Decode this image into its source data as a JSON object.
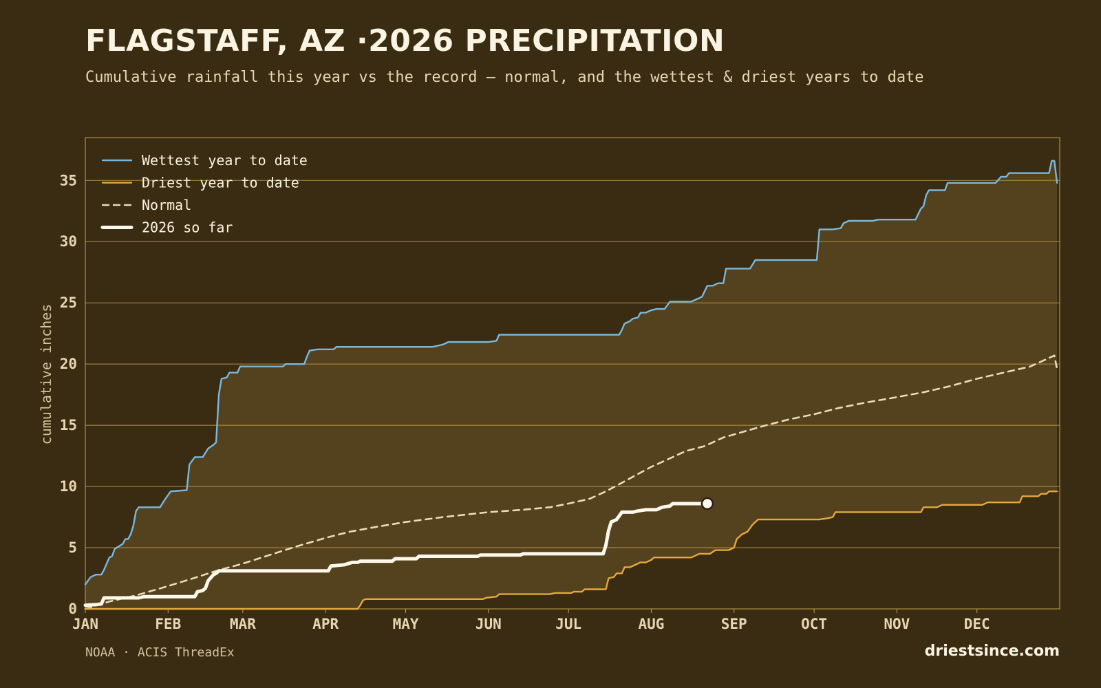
{
  "header": {
    "title": "FLAGSTAFF, AZ ·2026 PRECIPITATION",
    "subtitle": "Cumulative rainfall this year vs the record — normal, and the wettest & driest years to date"
  },
  "footer": {
    "source": "NOAA · ACIS ThreadEx",
    "site": "driestsince.com"
  },
  "colors": {
    "background": "#392c13",
    "band_fill": "#54411e",
    "grid": "#c9a248",
    "wettest": "#7ab8dd",
    "driest": "#e3a93c",
    "normal": "#eadbb8",
    "current": "#fdf8ec"
  },
  "chart_data": {
    "type": "line",
    "title": "FLAGSTAFF, AZ ·2026 PRECIPITATION",
    "subtitle": "Cumulative rainfall this year vs the record — normal, and the wettest & driest years to date",
    "xlabel": "",
    "ylabel": "cumulative inches",
    "x_unit": "day of year",
    "xlim": [
      1,
      366
    ],
    "ylim": [
      0,
      38.5
    ],
    "month_labels": [
      "JAN",
      "FEB",
      "MAR",
      "APR",
      "MAY",
      "JUN",
      "JUL",
      "AUG",
      "SEP",
      "OCT",
      "NOV",
      "DEC"
    ],
    "month_start_days": [
      1,
      32,
      60,
      91,
      121,
      152,
      182,
      213,
      244,
      274,
      305,
      335
    ],
    "y_ticks": [
      0,
      5,
      10,
      15,
      20,
      25,
      30,
      35
    ],
    "grid": true,
    "legend_position": "top-left",
    "band_between": [
      "Driest year to date",
      "Wettest year to date"
    ],
    "series": [
      {
        "name": "Wettest year to date",
        "style": "step",
        "points": [
          [
            1,
            2.0
          ],
          [
            3,
            2.6
          ],
          [
            5,
            2.8
          ],
          [
            7,
            2.8
          ],
          [
            8,
            3.2
          ],
          [
            10,
            4.2
          ],
          [
            11,
            4.3
          ],
          [
            12,
            4.9
          ],
          [
            15,
            5.3
          ],
          [
            16,
            5.7
          ],
          [
            17,
            5.7
          ],
          [
            18,
            6.1
          ],
          [
            19,
            6.8
          ],
          [
            20,
            8.0
          ],
          [
            21,
            8.3
          ],
          [
            27,
            8.3
          ],
          [
            29,
            8.3
          ],
          [
            31,
            9.0
          ],
          [
            33,
            9.6
          ],
          [
            39,
            9.7
          ],
          [
            40,
            11.8
          ],
          [
            42,
            12.4
          ],
          [
            45,
            12.4
          ],
          [
            47,
            13.1
          ],
          [
            49,
            13.4
          ],
          [
            50,
            13.6
          ],
          [
            51,
            17.5
          ],
          [
            52,
            18.8
          ],
          [
            54,
            18.9
          ],
          [
            55,
            19.3
          ],
          [
            58,
            19.3
          ],
          [
            59,
            19.8
          ],
          [
            61,
            19.8
          ],
          [
            75,
            19.8
          ],
          [
            76,
            20.0
          ],
          [
            83,
            20.0
          ],
          [
            84,
            20.6
          ],
          [
            85,
            21.1
          ],
          [
            88,
            21.2
          ],
          [
            94,
            21.2
          ],
          [
            95,
            21.4
          ],
          [
            120,
            21.4
          ],
          [
            131,
            21.4
          ],
          [
            133,
            21.5
          ],
          [
            135,
            21.6
          ],
          [
            136,
            21.7
          ],
          [
            137,
            21.8
          ],
          [
            152,
            21.8
          ],
          [
            155,
            21.9
          ],
          [
            156,
            22.4
          ],
          [
            182,
            22.4
          ],
          [
            201,
            22.4
          ],
          [
            202,
            22.8
          ],
          [
            203,
            23.3
          ],
          [
            205,
            23.5
          ],
          [
            206,
            23.7
          ],
          [
            208,
            23.8
          ],
          [
            209,
            24.2
          ],
          [
            211,
            24.2
          ],
          [
            213,
            24.4
          ],
          [
            215,
            24.5
          ],
          [
            218,
            24.5
          ],
          [
            219,
            24.8
          ],
          [
            220,
            25.1
          ],
          [
            228,
            25.1
          ],
          [
            230,
            25.3
          ],
          [
            232,
            25.5
          ],
          [
            234,
            26.4
          ],
          [
            236,
            26.4
          ],
          [
            238,
            26.6
          ],
          [
            240,
            26.6
          ],
          [
            241,
            27.8
          ],
          [
            250,
            27.8
          ],
          [
            252,
            28.5
          ],
          [
            264,
            28.5
          ],
          [
            275,
            28.5
          ],
          [
            276,
            31.0
          ],
          [
            281,
            31.0
          ],
          [
            284,
            31.1
          ],
          [
            285,
            31.5
          ],
          [
            287,
            31.7
          ],
          [
            296,
            31.7
          ],
          [
            298,
            31.8
          ],
          [
            312,
            31.8
          ],
          [
            314,
            32.7
          ],
          [
            315,
            32.9
          ],
          [
            316,
            33.8
          ],
          [
            317,
            34.2
          ],
          [
            323,
            34.2
          ],
          [
            324,
            34.8
          ],
          [
            342,
            34.8
          ],
          [
            344,
            35.3
          ],
          [
            346,
            35.3
          ],
          [
            347,
            35.6
          ],
          [
            362,
            35.6
          ],
          [
            363,
            36.6
          ],
          [
            364,
            36.6
          ],
          [
            365,
            34.8
          ]
        ]
      },
      {
        "name": "Driest year to date",
        "style": "step",
        "points": [
          [
            1,
            0.0
          ],
          [
            103,
            0.0
          ],
          [
            104,
            0.3
          ],
          [
            105,
            0.7
          ],
          [
            106,
            0.8
          ],
          [
            150,
            0.8
          ],
          [
            151,
            0.9
          ],
          [
            155,
            1.0
          ],
          [
            156,
            1.2
          ],
          [
            165,
            1.2
          ],
          [
            175,
            1.2
          ],
          [
            177,
            1.3
          ],
          [
            183,
            1.3
          ],
          [
            184,
            1.4
          ],
          [
            187,
            1.4
          ],
          [
            188,
            1.6
          ],
          [
            196,
            1.6
          ],
          [
            197,
            2.5
          ],
          [
            199,
            2.6
          ],
          [
            200,
            2.9
          ],
          [
            202,
            2.9
          ],
          [
            203,
            3.4
          ],
          [
            205,
            3.4
          ],
          [
            207,
            3.6
          ],
          [
            209,
            3.8
          ],
          [
            211,
            3.8
          ],
          [
            213,
            4.0
          ],
          [
            214,
            4.2
          ],
          [
            228,
            4.2
          ],
          [
            230,
            4.4
          ],
          [
            231,
            4.5
          ],
          [
            235,
            4.5
          ],
          [
            237,
            4.8
          ],
          [
            242,
            4.8
          ],
          [
            244,
            5.0
          ],
          [
            245,
            5.7
          ],
          [
            247,
            6.1
          ],
          [
            249,
            6.3
          ],
          [
            251,
            6.9
          ],
          [
            253,
            7.3
          ],
          [
            276,
            7.3
          ],
          [
            279,
            7.4
          ],
          [
            281,
            7.5
          ],
          [
            282,
            7.9
          ],
          [
            305,
            7.9
          ],
          [
            314,
            7.9
          ],
          [
            315,
            8.3
          ],
          [
            320,
            8.3
          ],
          [
            322,
            8.5
          ],
          [
            337,
            8.5
          ],
          [
            339,
            8.7
          ],
          [
            351,
            8.7
          ],
          [
            352,
            9.2
          ],
          [
            358,
            9.2
          ],
          [
            359,
            9.4
          ],
          [
            361,
            9.4
          ],
          [
            362,
            9.6
          ],
          [
            365,
            9.6
          ]
        ]
      },
      {
        "name": "Normal",
        "style": "dashed",
        "points": [
          [
            1,
            0.0
          ],
          [
            10,
            0.6
          ],
          [
            20,
            1.1
          ],
          [
            31,
            1.8
          ],
          [
            40,
            2.4
          ],
          [
            50,
            3.1
          ],
          [
            60,
            3.7
          ],
          [
            70,
            4.4
          ],
          [
            80,
            5.1
          ],
          [
            91,
            5.8
          ],
          [
            100,
            6.3
          ],
          [
            110,
            6.7
          ],
          [
            121,
            7.1
          ],
          [
            135,
            7.5
          ],
          [
            152,
            7.9
          ],
          [
            165,
            8.1
          ],
          [
            175,
            8.3
          ],
          [
            182,
            8.6
          ],
          [
            190,
            9.0
          ],
          [
            196,
            9.6
          ],
          [
            202,
            10.3
          ],
          [
            207,
            10.9
          ],
          [
            213,
            11.6
          ],
          [
            220,
            12.3
          ],
          [
            226,
            12.9
          ],
          [
            233,
            13.3
          ],
          [
            240,
            14.0
          ],
          [
            248,
            14.5
          ],
          [
            256,
            15.0
          ],
          [
            265,
            15.5
          ],
          [
            274,
            15.9
          ],
          [
            283,
            16.4
          ],
          [
            292,
            16.8
          ],
          [
            305,
            17.3
          ],
          [
            315,
            17.7
          ],
          [
            325,
            18.2
          ],
          [
            335,
            18.8
          ],
          [
            345,
            19.3
          ],
          [
            355,
            19.8
          ],
          [
            362,
            20.5
          ],
          [
            364,
            20.7
          ],
          [
            365,
            19.6
          ]
        ]
      },
      {
        "name": "2026 so far",
        "style": "bold-step",
        "points": [
          [
            1,
            0.3
          ],
          [
            5,
            0.35
          ],
          [
            7,
            0.4
          ],
          [
            8,
            0.9
          ],
          [
            21,
            0.9
          ],
          [
            23,
            1.0
          ],
          [
            42,
            1.0
          ],
          [
            43,
            1.4
          ],
          [
            45,
            1.5
          ],
          [
            46,
            1.7
          ],
          [
            47,
            2.3
          ],
          [
            49,
            2.8
          ],
          [
            50,
            2.9
          ],
          [
            51,
            3.1
          ],
          [
            61,
            3.1
          ],
          [
            92,
            3.1
          ],
          [
            93,
            3.5
          ],
          [
            98,
            3.6
          ],
          [
            101,
            3.8
          ],
          [
            103,
            3.8
          ],
          [
            104,
            3.9
          ],
          [
            116,
            3.9
          ],
          [
            117,
            4.1
          ],
          [
            125,
            4.1
          ],
          [
            126,
            4.3
          ],
          [
            148,
            4.3
          ],
          [
            149,
            4.4
          ],
          [
            164,
            4.4
          ],
          [
            165,
            4.5
          ],
          [
            195,
            4.5
          ],
          [
            196,
            5.2
          ],
          [
            197,
            6.4
          ],
          [
            198,
            7.1
          ],
          [
            200,
            7.3
          ],
          [
            201,
            7.6
          ],
          [
            202,
            7.9
          ],
          [
            205,
            7.9
          ],
          [
            206,
            7.9
          ],
          [
            208,
            8.0
          ],
          [
            211,
            8.1
          ],
          [
            215,
            8.1
          ],
          [
            217,
            8.3
          ],
          [
            220,
            8.4
          ],
          [
            221,
            8.6
          ],
          [
            234,
            8.6
          ]
        ],
        "last_value_marker": true
      }
    ]
  }
}
